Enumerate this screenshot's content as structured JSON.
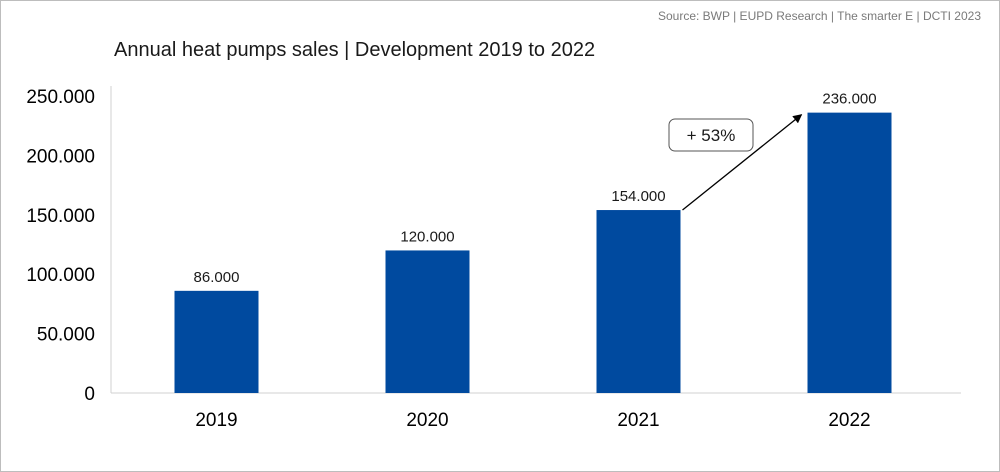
{
  "source": "Source: BWP | EUPD Research | The smarter E | DCTI 2023",
  "chart_data": {
    "type": "bar",
    "title": "Annual heat pumps sales | Development 2019 to 2022",
    "xlabel": "",
    "ylabel": "",
    "categories": [
      "2019",
      "2020",
      "2021",
      "2022"
    ],
    "values": [
      86000,
      120000,
      154000,
      236000
    ],
    "data_labels": [
      "86.000",
      "120.000",
      "154.000",
      "236.000"
    ],
    "ylim": [
      0,
      250000
    ],
    "yticks": [
      0,
      50000,
      100000,
      150000,
      200000,
      250000
    ],
    "ytick_labels": [
      "0",
      "50.000",
      "100.000",
      "150.000",
      "200.000",
      "250.000"
    ],
    "grid": false,
    "legend": "none",
    "bar_color": "#004a9f",
    "annotation": {
      "text": "+ 53%",
      "from_category": "2021",
      "to_category": "2022"
    }
  }
}
